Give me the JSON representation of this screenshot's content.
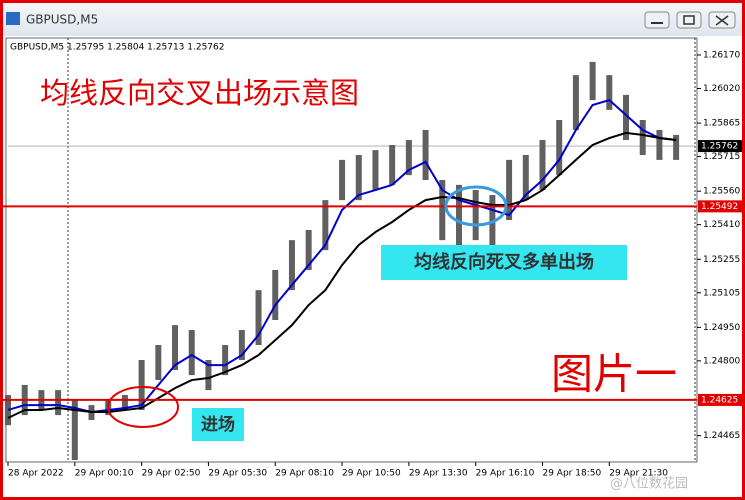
{
  "window_title": "GBPUSD,M5",
  "chart_data": {
    "type": "ohlc",
    "info": "GBPUSD,M5  1.25795 1.25804 1.25713 1.25762",
    "title": "均线反向交叉出场示意图",
    "annotations": [
      "均线反向死叉多单出场",
      "进场",
      "图片一"
    ],
    "watermark": "@八位数花园",
    "x": [
      0,
      8,
      16,
      24,
      32,
      40,
      48,
      56,
      64,
      72,
      80,
      88,
      96,
      104,
      112,
      120,
      128,
      136,
      144,
      152,
      160,
      168,
      176,
      184,
      192,
      200,
      208,
      216,
      224,
      232,
      240,
      248,
      256,
      264,
      272,
      280,
      288,
      296,
      304,
      312,
      320
    ],
    "high": [
      1.24647,
      1.24692,
      1.24669,
      1.24669,
      1.24624,
      1.24602,
      1.24624,
      1.24647,
      1.24804,
      1.24871,
      1.2496,
      1.24938,
      1.24804,
      1.24871,
      1.24938,
      1.25117,
      1.25207,
      1.25341,
      1.25386,
      1.2552,
      1.257,
      1.25722,
      1.25744,
      1.25767,
      1.25789,
      1.25834,
      1.2561,
      1.25588,
      1.25565,
      1.25543,
      1.257,
      1.25722,
      1.25789,
      1.25879,
      1.2608,
      1.26139,
      1.2608,
      1.25991,
      1.25879,
      1.25834,
      1.25812
    ],
    "low": [
      1.24512,
      1.24557,
      1.2458,
      1.24557,
      1.24356,
      1.24535,
      1.24557,
      1.2458,
      1.2458,
      1.24714,
      1.24759,
      1.24736,
      1.24669,
      1.24736,
      1.24804,
      1.24871,
      1.24983,
      1.25117,
      1.25207,
      1.25296,
      1.2552,
      1.2552,
      1.25565,
      1.25588,
      1.25632,
      1.2561,
      1.25341,
      1.25319,
      1.25341,
      1.25319,
      1.25431,
      1.2552,
      1.25565,
      1.25632,
      1.25834,
      1.25968,
      1.25924,
      1.25789,
      1.25722,
      1.257,
      1.257
    ],
    "bar_color": "#606060",
    "series": [
      {
        "color": "#0000cc",
        "values": [
          1.2458,
          1.24602,
          1.24602,
          1.24602,
          1.24589,
          1.24571,
          1.2458,
          1.24589,
          1.24602,
          1.24692,
          1.24781,
          1.24826,
          1.24781,
          1.24781,
          1.24826,
          1.24916,
          1.2505,
          1.2514,
          1.25229,
          1.25319,
          1.25476,
          1.25543,
          1.25565,
          1.25588,
          1.25655,
          1.25691,
          1.25565,
          1.2552,
          1.25498,
          1.25476,
          1.25453,
          1.25543,
          1.2561,
          1.257,
          1.25834,
          1.25946,
          1.25968,
          1.25901,
          1.25834,
          1.25798,
          1.25789
        ]
      },
      {
        "color": "#000000",
        "values": [
          1.24544,
          1.2458,
          1.2458,
          1.24589,
          1.2458,
          1.24571,
          1.24571,
          1.2458,
          1.24589,
          1.24633,
          1.24678,
          1.24714,
          1.24723,
          1.2475,
          1.24781,
          1.24826,
          1.24893,
          1.2496,
          1.2505,
          1.25117,
          1.25229,
          1.25319,
          1.25377,
          1.25422,
          1.25476,
          1.2552,
          1.25534,
          1.25529,
          1.25511,
          1.25498,
          1.25498,
          1.2552,
          1.25565,
          1.25632,
          1.257,
          1.25767,
          1.25798,
          1.25821,
          1.25812,
          1.25798,
          1.25789
        ]
      }
    ],
    "levels": [
      {
        "value": 1.25492,
        "label": "1.25492",
        "color": "#e00000"
      },
      {
        "value": 1.24625,
        "label": "1.24625",
        "color": "#e00000"
      }
    ],
    "current_price": {
      "value": 1.25762,
      "label": "1.25762"
    },
    "xlim": [
      0,
      330
    ],
    "xticks": [
      {
        "value": 0,
        "label": "28 Apr 2022"
      },
      {
        "value": 32,
        "label": "29 Apr 00:10"
      },
      {
        "value": 64,
        "label": "29 Apr 02:50"
      },
      {
        "value": 96,
        "label": "29 Apr 05:30"
      },
      {
        "value": 128,
        "label": "29 Apr 08:10"
      },
      {
        "value": 160,
        "label": "29 Apr 10:50"
      },
      {
        "value": 192,
        "label": "29 Apr 13:30"
      },
      {
        "value": 224,
        "label": "29 Apr 16:10"
      },
      {
        "value": 256,
        "label": "29 Apr 18:50"
      },
      {
        "value": 288,
        "label": "29 Apr 21:30"
      }
    ],
    "ylim": [
      1.24347,
      1.26246
    ],
    "yticks": [
      {
        "value": 1.2617,
        "label": "1.26170"
      },
      {
        "value": 1.2602,
        "label": "1.26020"
      },
      {
        "value": 1.25865,
        "label": "1.25865"
      },
      {
        "value": 1.25715,
        "label": "1.25715"
      },
      {
        "value": 1.2556,
        "label": "1.25560"
      },
      {
        "value": 1.2541,
        "label": "1.25410"
      },
      {
        "value": 1.25255,
        "label": "1.25255"
      },
      {
        "value": 1.25105,
        "label": "1.25105"
      },
      {
        "value": 1.2495,
        "label": "1.24950"
      },
      {
        "value": 1.248,
        "label": "1.24800"
      },
      {
        "value": 1.24465,
        "label": "1.24465"
      }
    ]
  }
}
